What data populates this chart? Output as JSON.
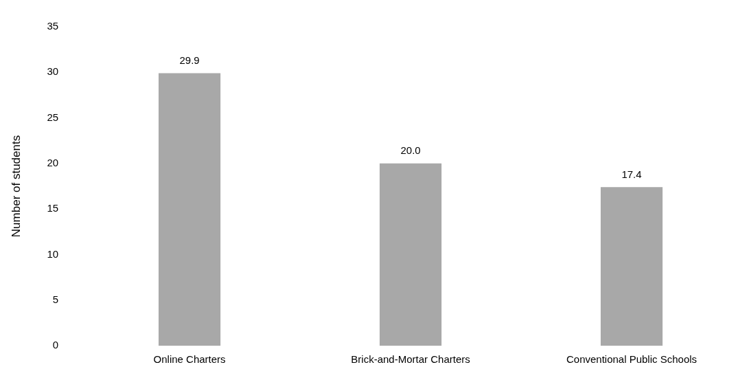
{
  "chart_data": {
    "type": "bar",
    "ylabel": "Number of students",
    "categories": [
      "Online Charters",
      "Brick-and-Mortar Charters",
      "Conventional Public Schools"
    ],
    "values": [
      29.9,
      20.0,
      17.4
    ],
    "value_labels": [
      "29.9",
      "20.0",
      "17.4"
    ],
    "color": "#a8a8a8",
    "ylim": [
      0,
      35
    ],
    "yticks": [
      0,
      5,
      10,
      15,
      20,
      25,
      30,
      35
    ],
    "grid": false,
    "legend": false
  }
}
